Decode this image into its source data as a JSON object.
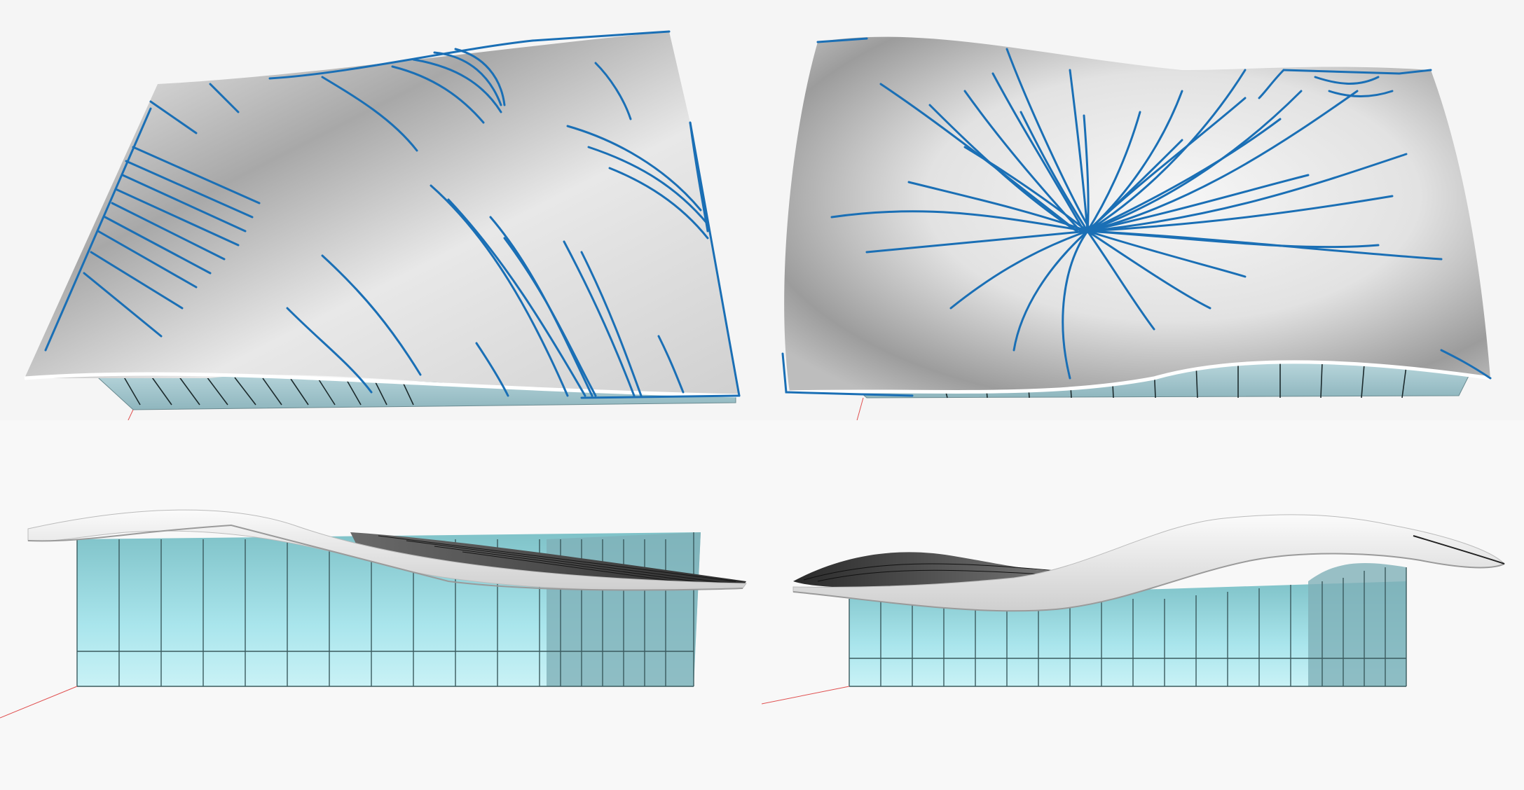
{
  "figure": {
    "panels": [
      {
        "id": "top-left",
        "view": "roof-plan-perspective",
        "overlay": "streamlines"
      },
      {
        "id": "top-right",
        "view": "roof-plan-perspective",
        "overlay": "streamlines"
      },
      {
        "id": "bottom-left",
        "view": "elevation-perspective"
      },
      {
        "id": "bottom-right",
        "view": "elevation-perspective"
      }
    ],
    "colors": {
      "background": "#f6f6f6",
      "roof_light": "#f2f2f2",
      "roof_shadow": "#a9a9a9",
      "streamline": "#1a6fb5",
      "facade_glass": "#9fd9de",
      "facade_mullion": "#2a3a3c",
      "roof_underside_dark": "#4a4a4a",
      "axis_red": "#e05050"
    }
  }
}
